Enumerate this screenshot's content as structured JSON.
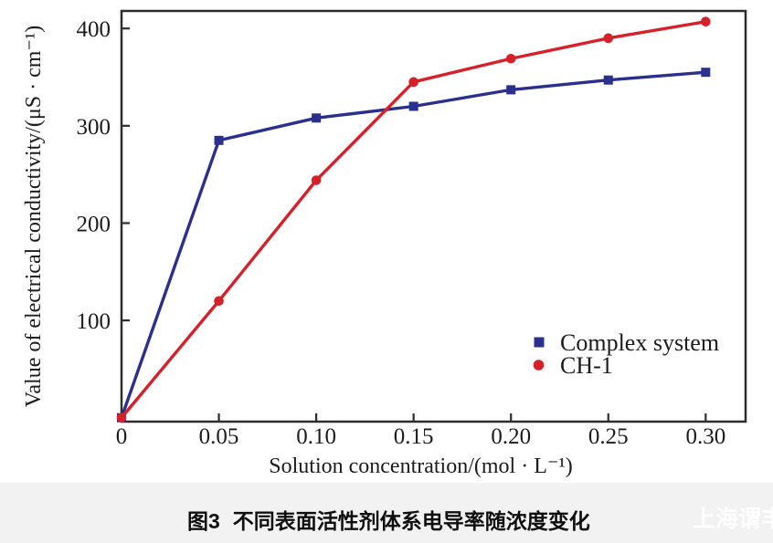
{
  "chart_data": {
    "type": "line",
    "title": "",
    "x": [
      0,
      0.05,
      0.1,
      0.15,
      0.2,
      0.25,
      0.3
    ],
    "series": [
      {
        "name": "Complex system",
        "color": "#2b2f8e",
        "marker": "square",
        "values": [
          0,
          285,
          308,
          320,
          337,
          347,
          355
        ]
      },
      {
        "name": "CH-1",
        "color": "#d6202a",
        "marker": "circle",
        "values": [
          0,
          120,
          244,
          345,
          369,
          390,
          407
        ]
      }
    ],
    "xlabel": "Solution concentration/(mol · L⁻¹)",
    "ylabel": "Value of electrical conductivity/(μS · cm⁻¹)",
    "x_ticks": [
      0,
      0.05,
      0.1,
      0.15,
      0.2,
      0.25,
      0.3
    ],
    "x_tick_labels": [
      "0",
      "0.05",
      "0.10",
      "0.15",
      "0.20",
      "0.25",
      "0.30"
    ],
    "y_ticks": [
      100,
      200,
      300,
      400
    ],
    "y_tick_labels": [
      "100",
      "200",
      "300",
      "400"
    ],
    "xlim": [
      0,
      0.3205
    ],
    "ylim": [
      -4,
      418
    ],
    "grid": false,
    "legend_position": "inside-right-lower",
    "frame_color": "#2d2d2d",
    "text_color": "#1c1c1c"
  },
  "caption": {
    "number": "图3",
    "title": "不同表面活性剂体系电导率随浓度变化"
  },
  "watermark": {
    "text": "上海谓丰"
  }
}
